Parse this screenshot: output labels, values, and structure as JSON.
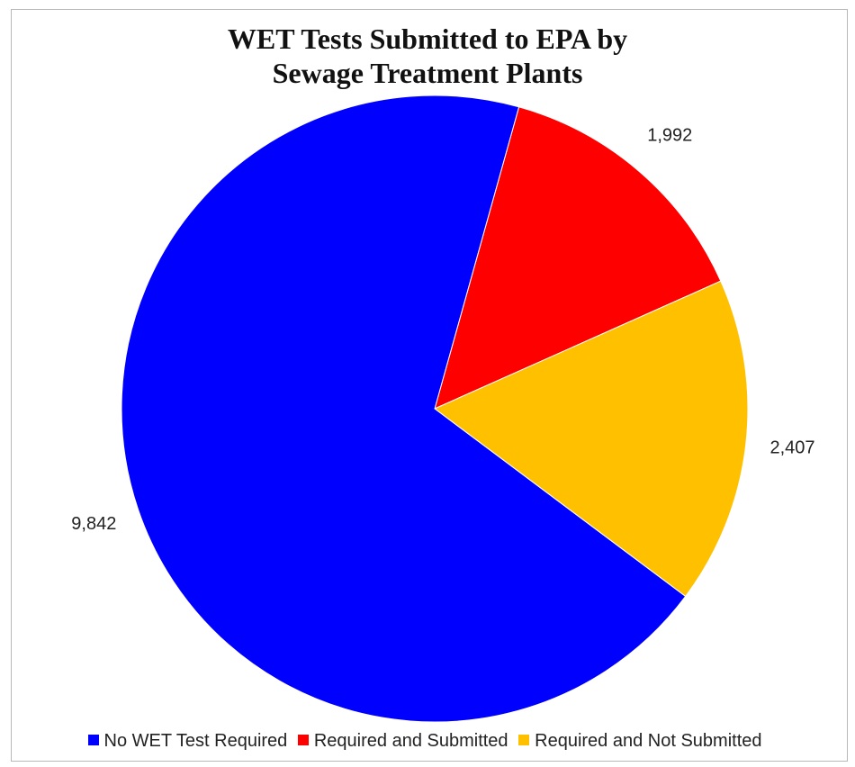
{
  "chart_data": {
    "type": "pie",
    "title": "WET Tests Submitted to EPA by Sewage Treatment Plants",
    "title_lines": [
      "WET Tests Submitted to EPA by",
      "Sewage Treatment Plants"
    ],
    "start_angle_deg": 15.6,
    "direction": "clockwise",
    "legend_position": "bottom",
    "slices": [
      {
        "category": "Required and Submitted",
        "value": 1992,
        "label": "1,992",
        "color": "#ff0000"
      },
      {
        "category": "Required and Not Submitted",
        "value": 2407,
        "label": "2,407",
        "color": "#ffc000"
      },
      {
        "category": "No WET Test Required",
        "value": 9842,
        "label": "9,842",
        "color": "#0000ff"
      }
    ],
    "legend": [
      {
        "label": "No WET Test Required",
        "color": "#0000ff"
      },
      {
        "label": "Required and Submitted",
        "color": "#ff0000"
      },
      {
        "label": "Required and Not Submitted",
        "color": "#ffc000"
      }
    ]
  }
}
